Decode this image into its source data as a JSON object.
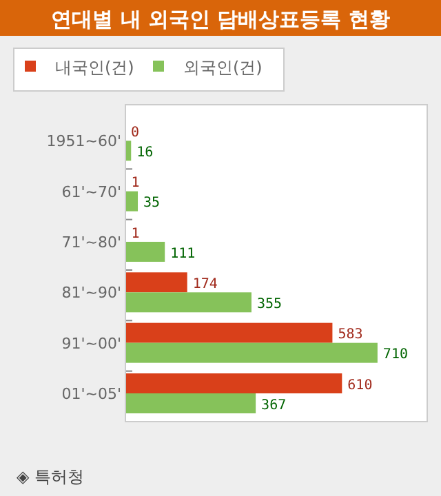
{
  "chart_data": {
    "type": "bar",
    "orientation": "horizontal",
    "title": "연대별 내 외국인 담배상표등록 현황",
    "categories": [
      "1951~60'",
      "61'~70'",
      "71'~80'",
      "81'~90'",
      "91'~00'",
      "01'~05'"
    ],
    "series": [
      {
        "name": "내국인(건)",
        "color": "#d9401a",
        "values": [
          0,
          1,
          1,
          174,
          583,
          610
        ]
      },
      {
        "name": "외국인(건)",
        "color": "#86c25a",
        "values": [
          16,
          35,
          111,
          355,
          710,
          367
        ]
      }
    ],
    "xlim": [
      0,
      850
    ],
    "data_labels": true,
    "legend": "top left",
    "annotations": [
      "◈ 특허청"
    ]
  }
}
